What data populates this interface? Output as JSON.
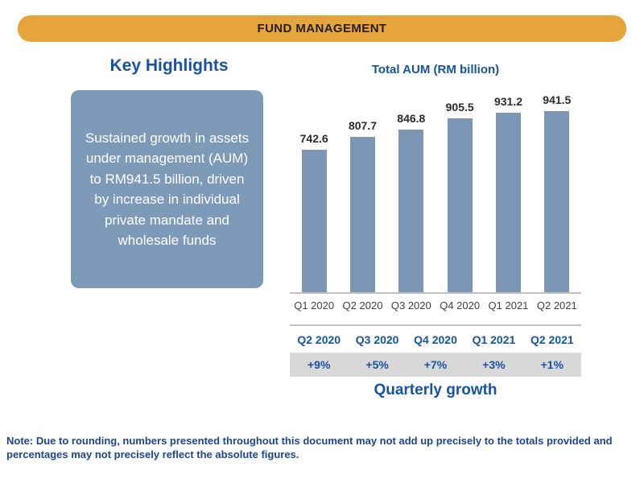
{
  "banner": {
    "title": "FUND MANAGEMENT"
  },
  "key_highlights": {
    "title": "Key Highlights",
    "body": "Sustained growth in assets under management (AUM) to RM941.5 billion, driven by increase in individual private mandate and wholesale funds"
  },
  "chart_data": {
    "type": "bar",
    "title": "Total AUM (RM billion)",
    "categories": [
      "Q1 2020",
      "Q2 2020",
      "Q3 2020",
      "Q4 2020",
      "Q1 2021",
      "Q2 2021"
    ],
    "values": [
      742.6,
      807.7,
      846.8,
      905.5,
      931.2,
      941.5
    ],
    "data_labels": [
      "742.6",
      "807.7",
      "846.8",
      "905.5",
      "931.2",
      "941.5"
    ],
    "xlabel": "",
    "ylabel": "",
    "ylim": [
      0,
      941.5
    ],
    "grid": false,
    "legend": "none",
    "bar_color": "#7b97b5",
    "axis_line_color": "#c2c2c2"
  },
  "growth_table": {
    "title": "Quarterly growth",
    "columns": [
      "Q2 2020",
      "Q3 2020",
      "Q4 2020",
      "Q1 2021",
      "Q2 2021"
    ],
    "values": [
      "+9%",
      "+5%",
      "+7%",
      "+3%",
      "+1%"
    ],
    "row_background": "#d8d8d8"
  },
  "note": "Note: Due to rounding, numbers presented throughout this document may not add up precisely to the totals provided and percentages may not precisely reflect the absolute figures.",
  "colors": {
    "banner_background": "#e6a43c",
    "banner_text": "#231f20",
    "heading_blue": "#1753a3",
    "highlight_box_background": "#7d9ab8",
    "highlight_box_text": "#ffffff",
    "bar_fill": "#7b97b5",
    "note_text": "#1a4695"
  }
}
